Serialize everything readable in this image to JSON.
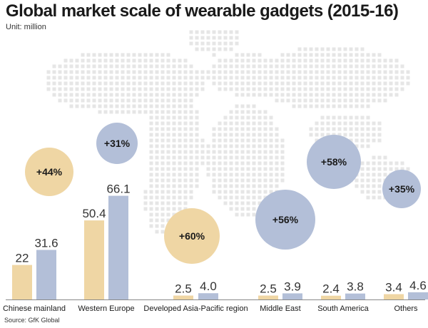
{
  "title": "Global market scale of wearable gadgets (2015-16)",
  "unit": "Unit: million",
  "source": "Source: GfK Global",
  "colors": {
    "y2015": "#efd6a4",
    "y2016": "#b3bfd8",
    "growth_warm": "#efd6a4",
    "growth_cool": "#b3bfd8",
    "map_dots": "#e6e6e6"
  },
  "chart_data": {
    "type": "bar",
    "title": "Global market scale of wearable gadgets (2015-16)",
    "ylabel": "Unit: million",
    "legend": "none",
    "grid": false,
    "categories": [
      "Chinese mainland",
      "Western Europe",
      "Developed Asia-Pacific region",
      "Middle East",
      "South America",
      "Others"
    ],
    "series": [
      {
        "values": [
          22,
          50.4,
          2.5,
          2.5,
          2.4,
          3.4
        ]
      },
      {
        "values": [
          31.6,
          66.1,
          4.0,
          3.9,
          3.8,
          4.6
        ]
      }
    ],
    "value_labels": [
      [
        "22",
        "31.6"
      ],
      [
        "50.4",
        "66.1"
      ],
      [
        "2.5",
        "4.0"
      ],
      [
        "2.5",
        "3.9"
      ],
      [
        "2.4",
        "3.8"
      ],
      [
        "3.4",
        "4.6"
      ]
    ],
    "growth_labels": [
      "+44%",
      "+31%",
      "+60%",
      "+56%",
      "+58%",
      "+35%"
    ]
  }
}
